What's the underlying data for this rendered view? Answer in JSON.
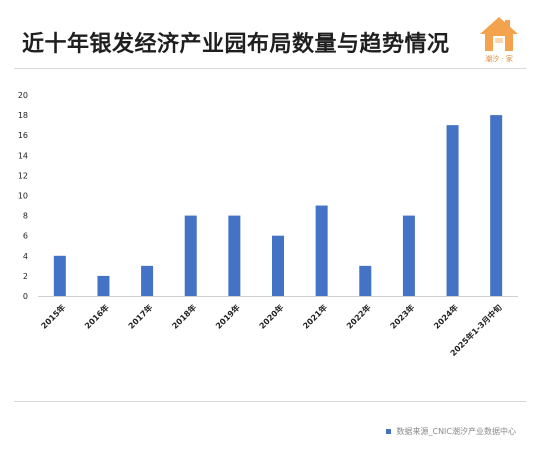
{
  "header": {
    "title": "近十年银发经济产业园布局数量与趋势情况",
    "logo_text": "潮汐 · 家",
    "logo_icon": "house-icon"
  },
  "footer": {
    "source": "数据来源_CNIC潮汐产业数据中心",
    "legend_color": "#4472c4"
  },
  "chart_data": {
    "type": "bar",
    "categories": [
      "2015年",
      "2016年",
      "2017年",
      "2018年",
      "2019年",
      "2020年",
      "2021年",
      "2022年",
      "2023年",
      "2024年",
      "2025年1-3月中旬"
    ],
    "values": [
      4,
      2,
      3,
      8,
      8,
      6,
      9,
      3,
      8,
      17,
      18
    ],
    "title": "近十年银发经济产业园布局数量与趋势情况",
    "xlabel": "",
    "ylabel": "",
    "ylim": [
      0,
      20
    ],
    "yticks": [
      0,
      2,
      4,
      6,
      8,
      10,
      12,
      14,
      16,
      18,
      20
    ],
    "grid": false,
    "bar_color": "#4472c4"
  }
}
